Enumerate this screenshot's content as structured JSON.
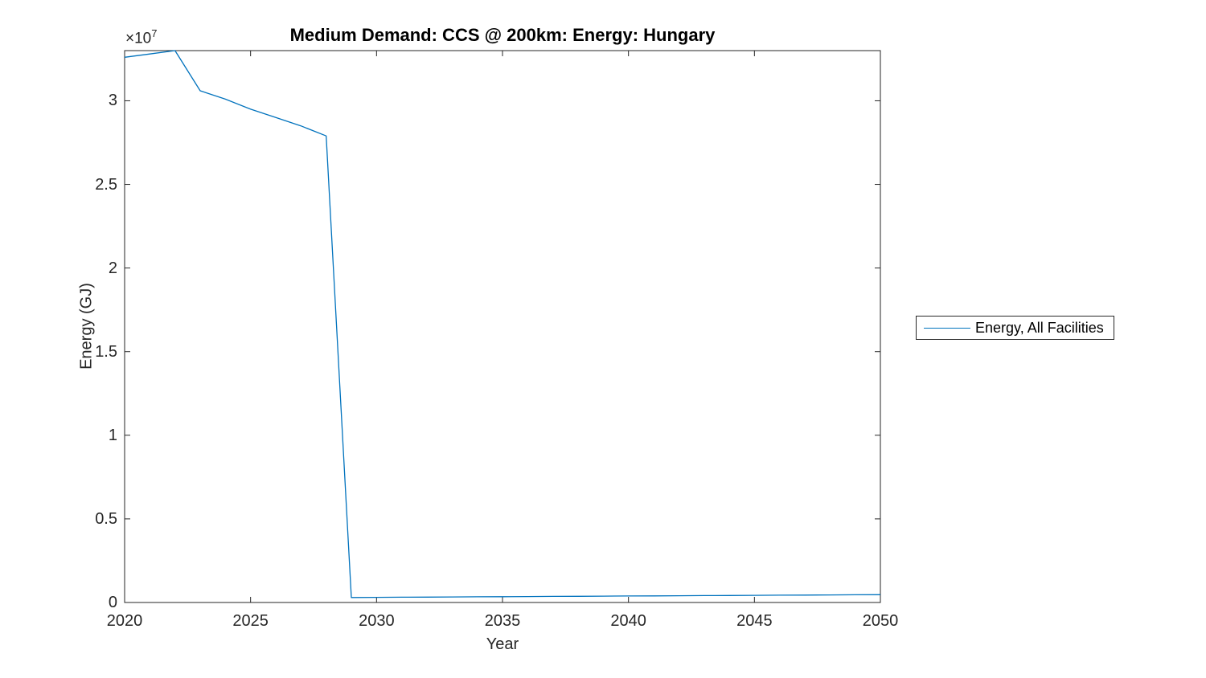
{
  "figure": {
    "background": "#ffffff"
  },
  "colors": {
    "line": "#0072BD",
    "axis": "#262626",
    "title": "#000000",
    "legend_border": "#262626"
  },
  "chart_data": {
    "type": "line",
    "title": "Medium Demand: CCS @ 200km: Energy: Hungary",
    "xlabel": "Year",
    "ylabel": "Energy (GJ)",
    "y_axis_multiplier_label": {
      "base": "×10",
      "exp": "7"
    },
    "xlim": [
      2020,
      2050
    ],
    "ylim": [
      0,
      33000000
    ],
    "grid": false,
    "x_ticks": [
      2020,
      2025,
      2030,
      2035,
      2040,
      2045,
      2050
    ],
    "x_tick_labels": [
      "2020",
      "2025",
      "2030",
      "2035",
      "2040",
      "2045",
      "2050"
    ],
    "y_ticks": [
      0,
      5000000,
      10000000,
      15000000,
      20000000,
      25000000,
      30000000
    ],
    "y_tick_labels": [
      "0",
      "0.5",
      "1",
      "1.5",
      "2",
      "2.5",
      "3"
    ],
    "legend": {
      "position": "right-outside",
      "entries": [
        {
          "label": "Energy, All Facilities",
          "color": "#0072BD"
        }
      ]
    },
    "series": [
      {
        "name": "Energy, All Facilities",
        "color": "#0072BD",
        "x": [
          2020,
          2021,
          2022,
          2023,
          2024,
          2025,
          2026,
          2027,
          2028,
          2029,
          2030,
          2031,
          2032,
          2033,
          2034,
          2035,
          2036,
          2037,
          2038,
          2039,
          2040,
          2041,
          2042,
          2043,
          2044,
          2045,
          2046,
          2047,
          2048,
          2049,
          2050
        ],
        "values": [
          32600000,
          32800000,
          33000000,
          30600000,
          30100000,
          29500000,
          29000000,
          28500000,
          27900000,
          300000,
          308000,
          316000,
          324000,
          332000,
          340000,
          348000,
          356000,
          364000,
          372000,
          380000,
          388000,
          396000,
          404000,
          412000,
          420000,
          428000,
          436000,
          444000,
          452000,
          460000,
          468000
        ]
      }
    ]
  }
}
